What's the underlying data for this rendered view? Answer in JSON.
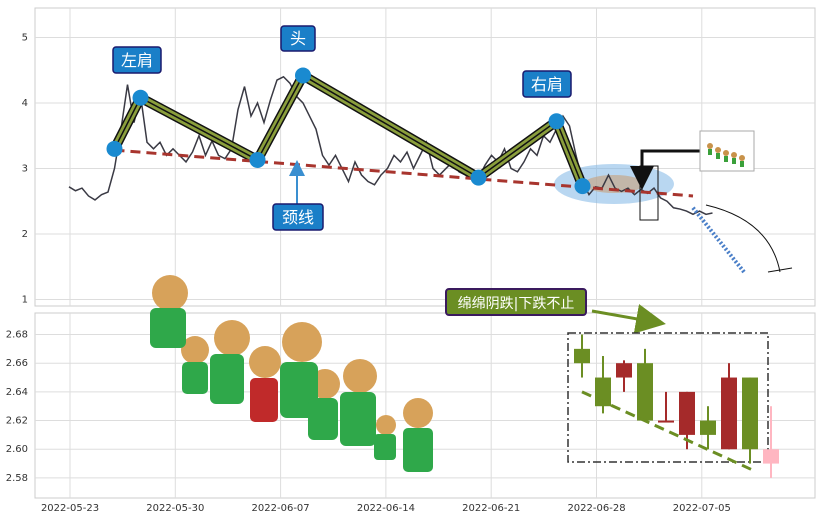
{
  "colors": {
    "price_line": "#3a3a44",
    "pattern_outline": "#111111",
    "pattern_fill": "#8a9e3c",
    "neckline": "#a8352e",
    "marker": "#1a8ad0",
    "callout_bg": "#1a7fc8",
    "callout_border": "#1a1a6e",
    "candle_up": "#6b8e23",
    "candle_down": "#a52a2a",
    "candle_pink": "#ffb6c1",
    "trend_arrow": "#4a7fc8",
    "warning_bg": "#6b8e23",
    "warning_border": "#3a1a5e",
    "ellipse": "#7fb6e6"
  },
  "labels": {
    "left_shoulder": "左肩",
    "head": "头",
    "right_shoulder": "右肩",
    "neckline": "颈线",
    "warning": "绵绵阴跌|下跌不止"
  },
  "chart_data": [
    {
      "type": "line",
      "title": "",
      "x_ticks": [
        "2022-05-23",
        "2022-05-30",
        "2022-06-07",
        "2022-06-14",
        "2022-06-21",
        "2022-06-28",
        "2022-07-05"
      ],
      "ylim": [
        0.9,
        5.45
      ],
      "yticks": [
        1,
        2,
        3,
        4,
        5
      ],
      "grid": true,
      "x": [
        0,
        1,
        2,
        3,
        4,
        5,
        6,
        7,
        8,
        9,
        10,
        11,
        12,
        13,
        14,
        15,
        16,
        17,
        18,
        19,
        20,
        21,
        22,
        23,
        24,
        25,
        26,
        27,
        28,
        29,
        30,
        31,
        32,
        33,
        34,
        35,
        36,
        37,
        38,
        39,
        40,
        41,
        42,
        43,
        44,
        45,
        46,
        47,
        48,
        49,
        50,
        51,
        52,
        53,
        54,
        55,
        56,
        57,
        58,
        59,
        60,
        61,
        62,
        63,
        64,
        65,
        66,
        67,
        68,
        69,
        70,
        71,
        72,
        73,
        74,
        75,
        76,
        77,
        78,
        79,
        80,
        81,
        82,
        83,
        84,
        85,
        86,
        87,
        88,
        89,
        90,
        91,
        92,
        93,
        94,
        95,
        96,
        97,
        98,
        99
      ],
      "values": [
        2.72,
        2.66,
        2.7,
        2.58,
        2.52,
        2.6,
        2.64,
        3.0,
        3.6,
        4.28,
        3.7,
        4.12,
        3.4,
        3.3,
        3.4,
        3.2,
        3.3,
        3.2,
        3.1,
        3.25,
        3.5,
        3.2,
        3.42,
        3.2,
        3.15,
        3.3,
        3.9,
        4.25,
        3.8,
        4.0,
        3.7,
        4.05,
        4.35,
        4.4,
        4.3,
        4.1,
        4.0,
        3.8,
        3.6,
        3.2,
        3.05,
        3.2,
        3.0,
        2.8,
        3.1,
        2.9,
        2.8,
        2.75,
        2.9,
        3.0,
        3.2,
        3.1,
        3.25,
        3.0,
        3.2,
        3.4,
        3.0,
        2.9,
        3.0,
        3.1,
        2.95,
        2.9,
        2.92,
        2.85,
        3.05,
        3.2,
        3.1,
        3.3,
        3.0,
        2.95,
        3.1,
        3.3,
        3.2,
        3.5,
        3.4,
        3.6,
        3.8,
        3.65,
        3.2,
        2.8,
        2.6,
        2.72,
        2.7,
        2.9,
        2.7,
        2.65,
        2.7,
        2.6,
        2.68,
        2.62,
        2.7,
        2.55,
        2.5,
        2.4,
        2.38,
        2.35,
        2.3,
        2.35,
        2.3,
        2.32
      ],
      "pattern": {
        "points": [
          {
            "x": 7,
            "y": 3.3
          },
          {
            "x": 11,
            "y": 4.08
          },
          {
            "x": 29,
            "y": 3.13
          },
          {
            "x": 36,
            "y": 4.42
          },
          {
            "x": 63,
            "y": 2.86
          },
          {
            "x": 75,
            "y": 3.72
          },
          {
            "x": 79,
            "y": 2.73
          }
        ]
      },
      "neckline": {
        "from": {
          "x": 7,
          "y": 3.28
        },
        "to": {
          "x": 96,
          "y": 2.58
        }
      },
      "projection": {
        "from": {
          "x": 96,
          "y": 2.4
        },
        "to": {
          "x": 104,
          "y": 1.4
        }
      }
    },
    {
      "type": "candlestick",
      "title": "",
      "ylim": [
        2.566,
        2.695
      ],
      "yticks": [
        2.58,
        2.6,
        2.62,
        2.64,
        2.66,
        2.68
      ],
      "grid": true,
      "candles": [
        {
          "open": 2.66,
          "close": 2.67,
          "high": 2.68,
          "low": 2.65,
          "color": "up"
        },
        {
          "open": 2.65,
          "close": 2.63,
          "high": 2.665,
          "low": 2.625,
          "color": "up"
        },
        {
          "open": 2.66,
          "close": 2.65,
          "high": 2.662,
          "low": 2.64,
          "color": "down"
        },
        {
          "open": 2.66,
          "close": 2.62,
          "high": 2.67,
          "low": 2.62,
          "color": "up"
        },
        {
          "open": 2.62,
          "close": 2.62,
          "high": 2.64,
          "low": 2.62,
          "color": "down"
        },
        {
          "open": 2.64,
          "close": 2.61,
          "high": 2.64,
          "low": 2.6,
          "color": "down"
        },
        {
          "open": 2.62,
          "close": 2.61,
          "high": 2.63,
          "low": 2.6,
          "color": "up"
        },
        {
          "open": 2.65,
          "close": 2.6,
          "high": 2.66,
          "low": 2.6,
          "color": "down"
        },
        {
          "open": 2.65,
          "close": 2.6,
          "high": 2.65,
          "low": 2.59,
          "color": "up"
        },
        {
          "open": 2.6,
          "close": 2.59,
          "high": 2.63,
          "low": 2.58,
          "color": "pink"
        }
      ],
      "trend": {
        "from": 0,
        "to": 9,
        "start": 2.64,
        "end": 2.586
      }
    }
  ]
}
